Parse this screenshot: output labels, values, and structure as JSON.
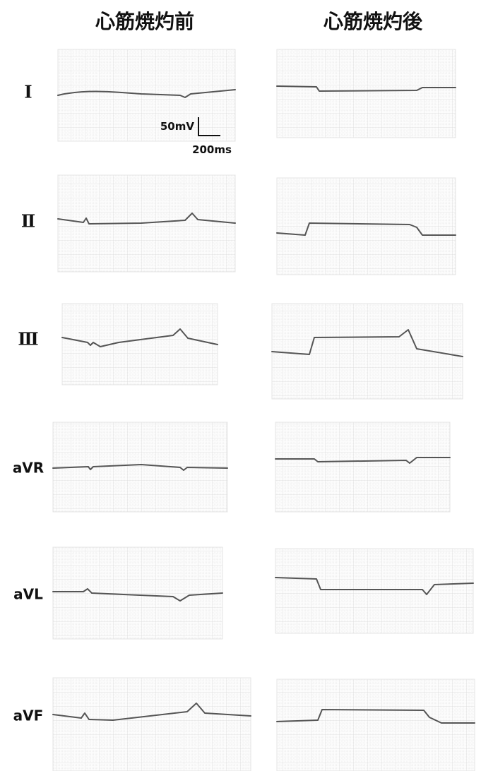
{
  "headers": [
    "心筋焼灼前",
    "心筋焼灼後"
  ],
  "leads": [
    "Ⅰ",
    "Ⅱ",
    "Ⅲ",
    "aVR",
    "aVL",
    "aVF"
  ],
  "scale_bar": {
    "voltage": "50mV",
    "time": "200ms"
  }
}
